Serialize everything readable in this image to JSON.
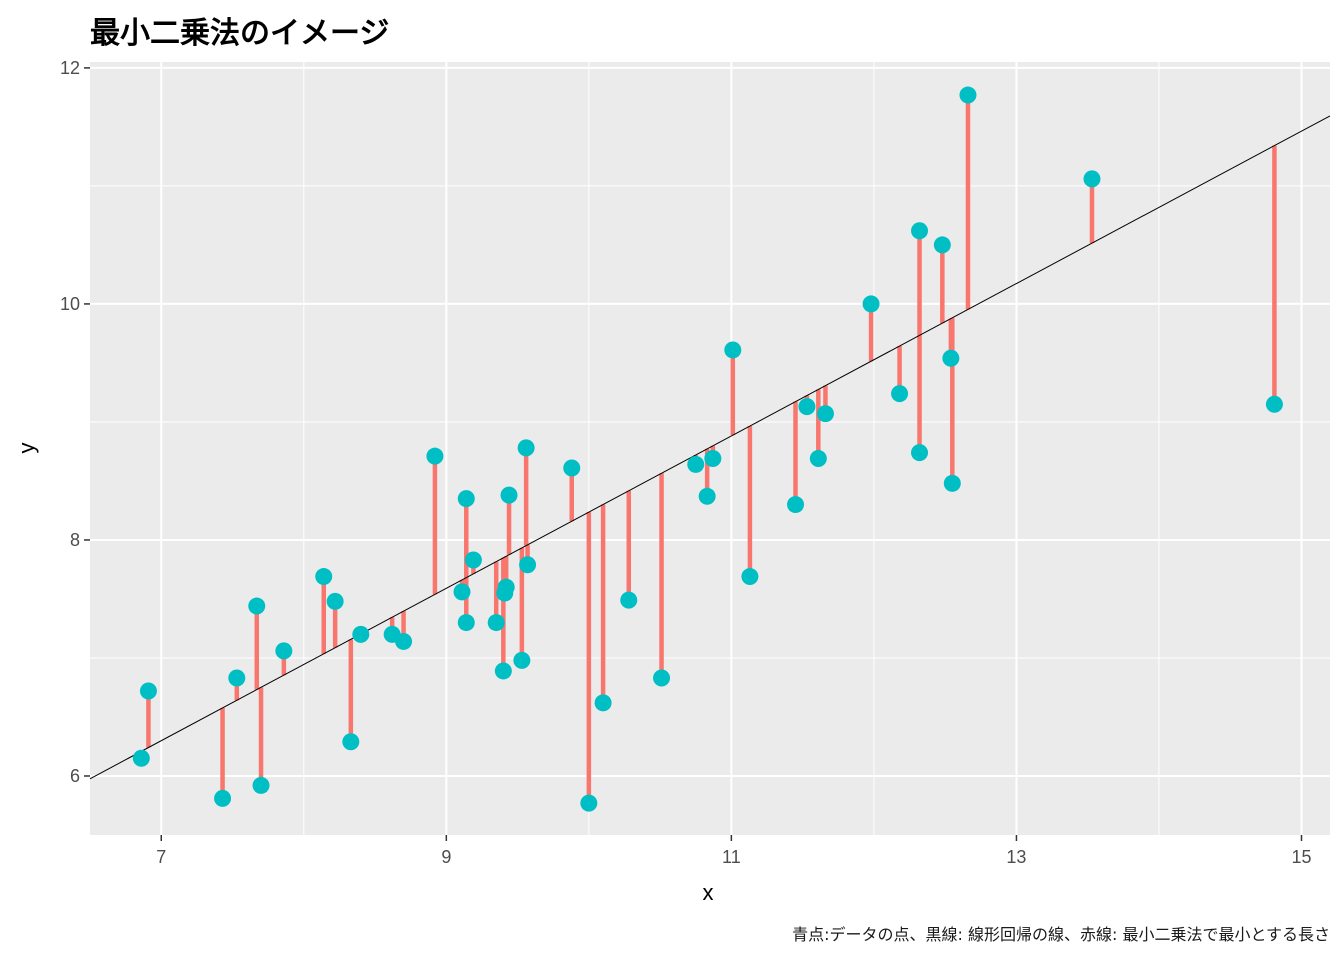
{
  "title": "最小二乗法のイメージ",
  "caption": "青点:データの点、黒線: 線形回帰の線、赤線: 最小二乗法で最小とする長さ",
  "colors": {
    "panel": "#ebebeb",
    "grid": "#ffffff",
    "point": "#00bfc4",
    "residual": "#f8766d",
    "fit_line": "#000000"
  },
  "chart_data": {
    "type": "scatter",
    "xlabel": "x",
    "ylabel": "y",
    "xlim": [
      6.5,
      15.2
    ],
    "ylim": [
      5.5,
      12.05
    ],
    "x_ticks": [
      7,
      9,
      11,
      13,
      15
    ],
    "y_ticks": [
      6,
      8,
      10,
      12
    ],
    "regression": {
      "intercept": 1.78,
      "slope": 0.6456
    },
    "points": [
      {
        "x": 6.86,
        "y": 6.15
      },
      {
        "x": 6.91,
        "y": 6.72
      },
      {
        "x": 7.43,
        "y": 5.81
      },
      {
        "x": 7.53,
        "y": 6.83
      },
      {
        "x": 7.67,
        "y": 7.44
      },
      {
        "x": 7.7,
        "y": 5.92
      },
      {
        "x": 7.86,
        "y": 7.06
      },
      {
        "x": 8.14,
        "y": 7.69
      },
      {
        "x": 8.22,
        "y": 7.48
      },
      {
        "x": 8.33,
        "y": 6.29
      },
      {
        "x": 8.4,
        "y": 7.2
      },
      {
        "x": 8.62,
        "y": 7.2
      },
      {
        "x": 8.7,
        "y": 7.14
      },
      {
        "x": 8.92,
        "y": 8.71
      },
      {
        "x": 9.11,
        "y": 7.56
      },
      {
        "x": 9.14,
        "y": 8.35
      },
      {
        "x": 9.14,
        "y": 7.3
      },
      {
        "x": 9.19,
        "y": 7.83
      },
      {
        "x": 9.35,
        "y": 7.3
      },
      {
        "x": 9.4,
        "y": 6.89
      },
      {
        "x": 9.42,
        "y": 7.6
      },
      {
        "x": 9.41,
        "y": 7.55
      },
      {
        "x": 9.44,
        "y": 8.38
      },
      {
        "x": 9.53,
        "y": 6.98
      },
      {
        "x": 9.56,
        "y": 8.78
      },
      {
        "x": 9.57,
        "y": 7.79
      },
      {
        "x": 9.88,
        "y": 8.61
      },
      {
        "x": 10.0,
        "y": 5.77
      },
      {
        "x": 10.1,
        "y": 6.62
      },
      {
        "x": 10.28,
        "y": 7.49
      },
      {
        "x": 10.51,
        "y": 6.83
      },
      {
        "x": 10.75,
        "y": 8.64
      },
      {
        "x": 10.83,
        "y": 8.37
      },
      {
        "x": 10.87,
        "y": 8.69
      },
      {
        "x": 11.01,
        "y": 9.61
      },
      {
        "x": 11.13,
        "y": 7.69
      },
      {
        "x": 11.45,
        "y": 8.3
      },
      {
        "x": 11.53,
        "y": 9.13
      },
      {
        "x": 11.61,
        "y": 8.69
      },
      {
        "x": 11.66,
        "y": 9.07
      },
      {
        "x": 11.98,
        "y": 10.0
      },
      {
        "x": 12.18,
        "y": 9.24
      },
      {
        "x": 12.32,
        "y": 10.62
      },
      {
        "x": 12.32,
        "y": 8.74
      },
      {
        "x": 12.48,
        "y": 10.5
      },
      {
        "x": 12.54,
        "y": 9.54
      },
      {
        "x": 12.55,
        "y": 8.48
      },
      {
        "x": 12.66,
        "y": 11.77
      },
      {
        "x": 13.53,
        "y": 11.06
      },
      {
        "x": 14.81,
        "y": 9.15
      }
    ]
  }
}
